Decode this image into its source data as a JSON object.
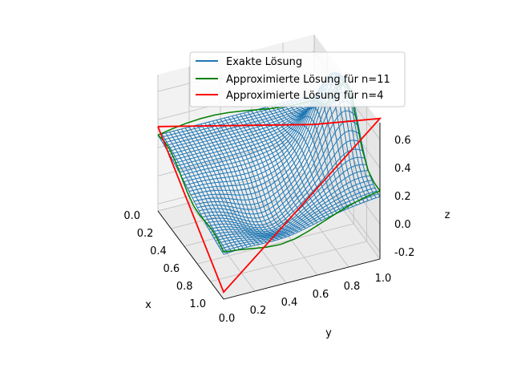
{
  "chart_data": {
    "type": "surface3d",
    "legend": {
      "placement": "upper-center",
      "entries": [
        {
          "label": "Exakte Lösung",
          "color": "#1f77b4"
        },
        {
          "label": "Approximierte Lösung für n=11",
          "color": "#008000"
        },
        {
          "label": "Approximierte Lösung für n=4",
          "color": "#ff0000"
        }
      ]
    },
    "axes": {
      "x": {
        "label": "x",
        "range": [
          0,
          1
        ],
        "ticks": [
          "0.0",
          "0.2",
          "0.4",
          "0.6",
          "0.8",
          "1.0"
        ]
      },
      "y": {
        "label": "y",
        "range": [
          0,
          1
        ],
        "ticks": [
          "0.0",
          "0.2",
          "0.4",
          "0.6",
          "0.8",
          "1.0"
        ]
      },
      "z": {
        "label": "z",
        "range": [
          -0.25,
          0.72
        ],
        "ticks": [
          "-0.2",
          "0.0",
          "0.2",
          "0.4",
          "0.6"
        ]
      }
    },
    "series": [
      {
        "name": "Exakte Lösung",
        "style": "wireframe",
        "color": "#1f77b4",
        "function": "z(x,y)",
        "samples": [
          {
            "x": 0.0,
            "y": 0.0,
            "z": 0.25
          },
          {
            "x": 0.0,
            "y": 0.5,
            "z": 0.23
          },
          {
            "x": 0.0,
            "y": 1.0,
            "z": 0.3
          },
          {
            "x": 0.5,
            "y": 0.0,
            "z": 0.3
          },
          {
            "x": 0.5,
            "y": 0.5,
            "z": 0.05
          },
          {
            "x": 0.5,
            "y": 0.9,
            "z": 0.63
          },
          {
            "x": 1.0,
            "y": 0.0,
            "z": 0.13
          },
          {
            "x": 1.0,
            "y": 0.5,
            "z": 0.0
          },
          {
            "x": 1.0,
            "y": 1.0,
            "z": 0.25
          }
        ]
      },
      {
        "name": "Approximierte Lösung für n=11",
        "style": "wireframe",
        "color": "#008000",
        "grid_size": 11
      },
      {
        "name": "Approximierte Lösung für n=4",
        "style": "wireframe",
        "color": "#ff0000",
        "grid_size": 4,
        "corner_points": [
          {
            "x": 0.0,
            "y": 0.0,
            "z": 0.35
          },
          {
            "x": 1.0,
            "y": 0.0,
            "z": -0.2
          },
          {
            "x": 0.0,
            "y": 1.0,
            "z": 0.08
          },
          {
            "x": 1.0,
            "y": 1.0,
            "z": 0.75
          }
        ]
      }
    ],
    "grid": true,
    "view": {
      "elevation": 30,
      "azimuth": -35
    }
  }
}
